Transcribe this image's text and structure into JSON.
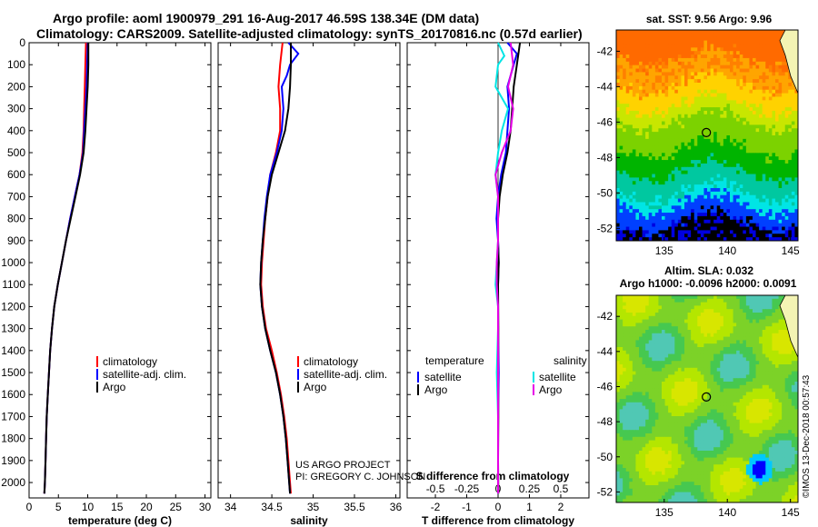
{
  "header": {
    "title_line1": "Argo profile: aoml 1900979_291 16-Aug-2017 46.59S 138.34E (DM data)",
    "title_line2": "Climatology: CARS2009. Satellite-adjusted climatology: synTS_20170816.nc (0.57d earlier)"
  },
  "credit": {
    "line1": "US ARGO PROJECT",
    "line2": "PI: GREGORY C. JOHNSON"
  },
  "sst_map": {
    "title": "sat. SST: 9.56 Argo: 9.96",
    "xticks": [
      "135",
      "140",
      "145"
    ],
    "yticks": [
      "-42",
      "-44",
      "-46",
      "-48",
      "-50",
      "-52"
    ]
  },
  "sla_map": {
    "title_line1": "Altim. SLA: 0.032",
    "title_line2": "Argo h1000: -0.0096 h2000: 0.0091",
    "xticks": [
      "135",
      "140",
      "145"
    ],
    "yticks": [
      "-42",
      "-44",
      "-46",
      "-48",
      "-50",
      "-52"
    ]
  },
  "stamp": "©IMOS 13-Dec-2018 00:57:43",
  "colors": {
    "climatology": "#ff0000",
    "satellite": "#0000ff",
    "argo": "#000000",
    "sal_satellite": "#00e5e5",
    "sal_argo": "#e600e6"
  },
  "chart_data": [
    {
      "type": "line",
      "ylabel": "",
      "xlabel": "temperature (deg C)",
      "xlim": [
        0,
        31
      ],
      "ylim": [
        2070,
        0
      ],
      "yticks": [
        "0",
        "100",
        "200",
        "300",
        "400",
        "500",
        "600",
        "700",
        "800",
        "900",
        "1000",
        "1100",
        "1200",
        "1300",
        "1400",
        "1500",
        "1600",
        "1700",
        "1800",
        "1900",
        "2000"
      ],
      "xticks": [
        "0",
        "5",
        "10",
        "15",
        "20",
        "25",
        "30"
      ],
      "legend": [
        "climatology",
        "satellite-adj. clim.",
        "Argo"
      ],
      "legend_position": "lower-right",
      "series": [
        {
          "name": "climatology",
          "color": "#ff0000",
          "points": [
            [
              9.7,
              0
            ],
            [
              9.6,
              100
            ],
            [
              9.5,
              200
            ],
            [
              9.4,
              300
            ],
            [
              9.3,
              400
            ],
            [
              9.1,
              500
            ],
            [
              8.6,
              600
            ],
            [
              7.8,
              700
            ],
            [
              7.0,
              800
            ],
            [
              6.3,
              900
            ],
            [
              5.6,
              1000
            ],
            [
              4.9,
              1100
            ],
            [
              4.3,
              1200
            ],
            [
              3.9,
              1300
            ],
            [
              3.6,
              1400
            ],
            [
              3.4,
              1500
            ],
            [
              3.2,
              1600
            ],
            [
              3.0,
              1700
            ],
            [
              2.9,
              1800
            ],
            [
              2.8,
              1900
            ],
            [
              2.7,
              2000
            ],
            [
              2.6,
              2050
            ]
          ]
        },
        {
          "name": "satellite-adj. clim.",
          "color": "#0000ff",
          "points": [
            [
              10.0,
              0
            ],
            [
              9.9,
              100
            ],
            [
              9.8,
              200
            ],
            [
              9.6,
              300
            ],
            [
              9.4,
              400
            ],
            [
              9.2,
              500
            ],
            [
              8.6,
              600
            ],
            [
              7.8,
              700
            ],
            [
              7.0,
              800
            ],
            [
              6.3,
              900
            ],
            [
              5.6,
              1000
            ],
            [
              4.9,
              1100
            ],
            [
              4.3,
              1200
            ],
            [
              3.9,
              1300
            ],
            [
              3.6,
              1400
            ],
            [
              3.4,
              1500
            ],
            [
              3.2,
              1600
            ],
            [
              3.0,
              1700
            ],
            [
              2.9,
              1800
            ],
            [
              2.8,
              1900
            ],
            [
              2.7,
              2000
            ],
            [
              2.6,
              2050
            ]
          ]
        },
        {
          "name": "Argo",
          "color": "#000000",
          "points": [
            [
              10.1,
              0
            ],
            [
              10.1,
              100
            ],
            [
              10.0,
              200
            ],
            [
              9.8,
              300
            ],
            [
              9.6,
              400
            ],
            [
              9.3,
              500
            ],
            [
              8.7,
              600
            ],
            [
              7.9,
              700
            ],
            [
              7.1,
              800
            ],
            [
              6.3,
              900
            ],
            [
              5.6,
              1000
            ],
            [
              4.9,
              1100
            ],
            [
              4.3,
              1200
            ],
            [
              3.9,
              1300
            ],
            [
              3.6,
              1400
            ],
            [
              3.4,
              1500
            ],
            [
              3.2,
              1600
            ],
            [
              3.0,
              1700
            ],
            [
              2.9,
              1800
            ],
            [
              2.8,
              1900
            ],
            [
              2.7,
              2000
            ],
            [
              2.6,
              2050
            ]
          ]
        }
      ]
    },
    {
      "type": "line",
      "xlabel": "salinity",
      "xlim": [
        33.85,
        36.05
      ],
      "ylim": [
        2070,
        0
      ],
      "xticks": [
        "34",
        "34.5",
        "35",
        "35.5",
        "36"
      ],
      "legend": [
        "climatology",
        "satellite-adj. clim.",
        "Argo"
      ],
      "legend_position": "lower-right",
      "series": [
        {
          "name": "climatology",
          "color": "#ff0000",
          "points": [
            [
              34.63,
              0
            ],
            [
              34.6,
              100
            ],
            [
              34.58,
              200
            ],
            [
              34.6,
              300
            ],
            [
              34.6,
              400
            ],
            [
              34.55,
              500
            ],
            [
              34.48,
              600
            ],
            [
              34.45,
              700
            ],
            [
              34.42,
              800
            ],
            [
              34.4,
              900
            ],
            [
              34.38,
              1000
            ],
            [
              34.37,
              1100
            ],
            [
              34.39,
              1200
            ],
            [
              34.43,
              1300
            ],
            [
              34.5,
              1400
            ],
            [
              34.56,
              1500
            ],
            [
              34.61,
              1600
            ],
            [
              34.65,
              1700
            ],
            [
              34.68,
              1800
            ],
            [
              34.7,
              1900
            ],
            [
              34.72,
              2000
            ],
            [
              34.73,
              2050
            ]
          ]
        },
        {
          "name": "satellite-adj. clim.",
          "color": "#0000ff",
          "points": [
            [
              34.7,
              0
            ],
            [
              34.82,
              50
            ],
            [
              34.72,
              100
            ],
            [
              34.68,
              150
            ],
            [
              34.62,
              200
            ],
            [
              34.64,
              300
            ],
            [
              34.62,
              400
            ],
            [
              34.56,
              500
            ],
            [
              34.48,
              600
            ],
            [
              34.44,
              700
            ],
            [
              34.41,
              800
            ],
            [
              34.39,
              900
            ],
            [
              34.37,
              1000
            ],
            [
              34.36,
              1100
            ],
            [
              34.38,
              1200
            ],
            [
              34.42,
              1300
            ],
            [
              34.48,
              1400
            ],
            [
              34.55,
              1500
            ],
            [
              34.6,
              1600
            ],
            [
              34.64,
              1700
            ],
            [
              34.67,
              1800
            ],
            [
              34.69,
              1900
            ],
            [
              34.71,
              2000
            ],
            [
              34.72,
              2050
            ]
          ]
        },
        {
          "name": "Argo",
          "color": "#000000",
          "points": [
            [
              34.73,
              0
            ],
            [
              34.73,
              100
            ],
            [
              34.72,
              200
            ],
            [
              34.7,
              300
            ],
            [
              34.66,
              400
            ],
            [
              34.58,
              500
            ],
            [
              34.5,
              600
            ],
            [
              34.45,
              700
            ],
            [
              34.42,
              800
            ],
            [
              34.39,
              900
            ],
            [
              34.37,
              1000
            ],
            [
              34.36,
              1100
            ],
            [
              34.38,
              1200
            ],
            [
              34.42,
              1300
            ],
            [
              34.48,
              1400
            ],
            [
              34.55,
              1500
            ],
            [
              34.6,
              1600
            ],
            [
              34.64,
              1700
            ],
            [
              34.67,
              1800
            ],
            [
              34.69,
              1900
            ],
            [
              34.71,
              2000
            ],
            [
              34.72,
              2050
            ]
          ]
        }
      ]
    },
    {
      "type": "line",
      "xlabel": "T difference from climatology",
      "xlabel_top": "S difference from climatology",
      "xlim": [
        -2.9,
        2.9
      ],
      "xlim_salinity": [
        -0.725,
        0.725
      ],
      "ylim": [
        2070,
        0
      ],
      "xticks": [
        "-2",
        "-1",
        "0",
        "1",
        "2"
      ],
      "xticks_top": [
        "-0.5",
        "-0.25",
        "0",
        "0.25",
        "0.5"
      ],
      "legend_left_title": "temperature",
      "legend_right_title": "salinity",
      "legend_left": [
        "satellite",
        "Argo"
      ],
      "legend_right": [
        "satellite",
        "Argo"
      ],
      "series": [
        {
          "name": "satellite",
          "group": "temperature",
          "color": "#0000ff",
          "points": [
            [
              0.3,
              0
            ],
            [
              0.6,
              50
            ],
            [
              0.5,
              100
            ],
            [
              0.3,
              200
            ],
            [
              0.35,
              300
            ],
            [
              0.3,
              400
            ],
            [
              0.25,
              500
            ],
            [
              0.1,
              600
            ],
            [
              0.0,
              700
            ],
            [
              -0.05,
              800
            ],
            [
              0.0,
              900
            ],
            [
              0.02,
              1000
            ],
            [
              0.0,
              1100
            ],
            [
              0.0,
              1300
            ],
            [
              0.02,
              1500
            ],
            [
              0.0,
              1700
            ],
            [
              0.0,
              1900
            ],
            [
              0.0,
              2050
            ]
          ]
        },
        {
          "name": "Argo",
          "group": "temperature",
          "color": "#000000",
          "points": [
            [
              0.7,
              0
            ],
            [
              0.6,
              100
            ],
            [
              0.5,
              200
            ],
            [
              0.45,
              300
            ],
            [
              0.4,
              400
            ],
            [
              0.3,
              500
            ],
            [
              0.15,
              600
            ],
            [
              0.05,
              700
            ],
            [
              0.0,
              800
            ],
            [
              0.0,
              900
            ],
            [
              0.02,
              1000
            ],
            [
              0.0,
              1100
            ],
            [
              0.01,
              1300
            ],
            [
              0.0,
              1500
            ],
            [
              0.01,
              1700
            ],
            [
              0.0,
              1900
            ],
            [
              0.01,
              2050
            ]
          ]
        },
        {
          "name": "satellite",
          "group": "salinity",
          "color": "#00e5e5",
          "points": [
            [
              0.0,
              0
            ],
            [
              0.05,
              60
            ],
            [
              0.0,
              100
            ],
            [
              -0.02,
              200
            ],
            [
              0.08,
              300
            ],
            [
              0.03,
              400
            ],
            [
              0.0,
              500
            ],
            [
              -0.02,
              600
            ],
            [
              0.0,
              700
            ],
            [
              0.0,
              800
            ],
            [
              0.0,
              900
            ],
            [
              -0.01,
              1000
            ],
            [
              -0.02,
              1100
            ],
            [
              0.0,
              1200
            ],
            [
              0.0,
              1300
            ],
            [
              -0.01,
              1500
            ],
            [
              0.0,
              1700
            ],
            [
              0.0,
              1900
            ],
            [
              0.0,
              2050
            ]
          ]
        },
        {
          "name": "Argo",
          "group": "salinity",
          "color": "#e600e6",
          "points": [
            [
              0.1,
              0
            ],
            [
              0.12,
              100
            ],
            [
              0.08,
              200
            ],
            [
              0.12,
              300
            ],
            [
              0.1,
              400
            ],
            [
              0.03,
              500
            ],
            [
              -0.02,
              600
            ],
            [
              0.0,
              700
            ],
            [
              0.0,
              800
            ],
            [
              0.0,
              900
            ],
            [
              -0.01,
              1000
            ],
            [
              -0.01,
              1100
            ],
            [
              0.0,
              1200
            ],
            [
              0.0,
              1300
            ],
            [
              0.0,
              1500
            ],
            [
              0.0,
              1700
            ],
            [
              0.0,
              1900
            ],
            [
              0.0,
              2050
            ]
          ]
        }
      ]
    }
  ]
}
